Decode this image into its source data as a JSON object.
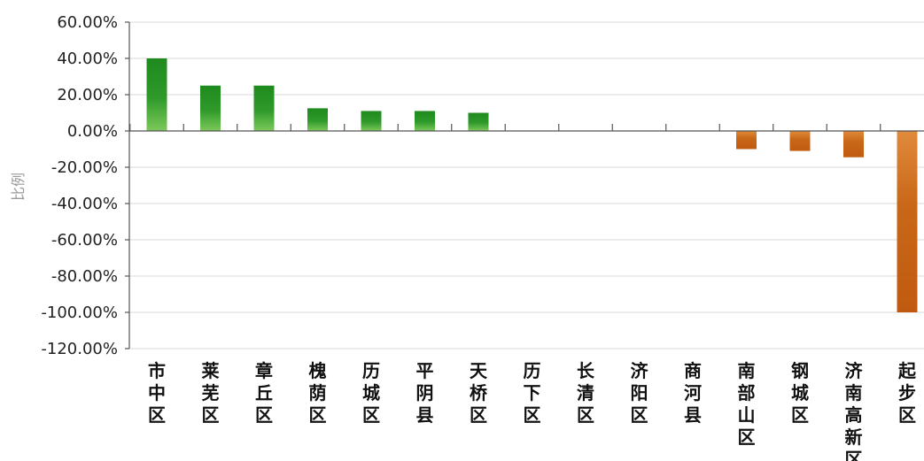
{
  "chart_data": {
    "type": "bar",
    "title": "",
    "xlabel": "",
    "ylabel": "比例",
    "ylim": [
      -120,
      60
    ],
    "y_ticks": [
      60,
      40,
      20,
      0,
      -20,
      -40,
      -60,
      -80,
      -100,
      -120
    ],
    "y_tick_labels": [
      "60.00%",
      "40.00%",
      "20.00%",
      "0.00%",
      "-20.00%",
      "-40.00%",
      "-60.00%",
      "-80.00%",
      "-100.00%",
      "-120.00%"
    ],
    "grid": true,
    "legend": "none",
    "categories": [
      "市中区",
      "莱芜区",
      "章丘区",
      "槐荫区",
      "历城区",
      "平阴县",
      "天桥区",
      "历下区",
      "长清区",
      "济阳区",
      "商河县",
      "南部山区",
      "钢城区",
      "济南高新区",
      "起步区"
    ],
    "values": [
      40,
      25,
      25,
      12.5,
      11,
      11,
      10,
      0,
      0,
      0,
      0,
      -10,
      -11,
      -14.5,
      -100
    ],
    "colors": {
      "positive_top": "#1e8a1e",
      "positive_bottom": "#7cc95a",
      "negative_top": "#e08a3c",
      "negative_bottom": "#c05a10"
    }
  }
}
